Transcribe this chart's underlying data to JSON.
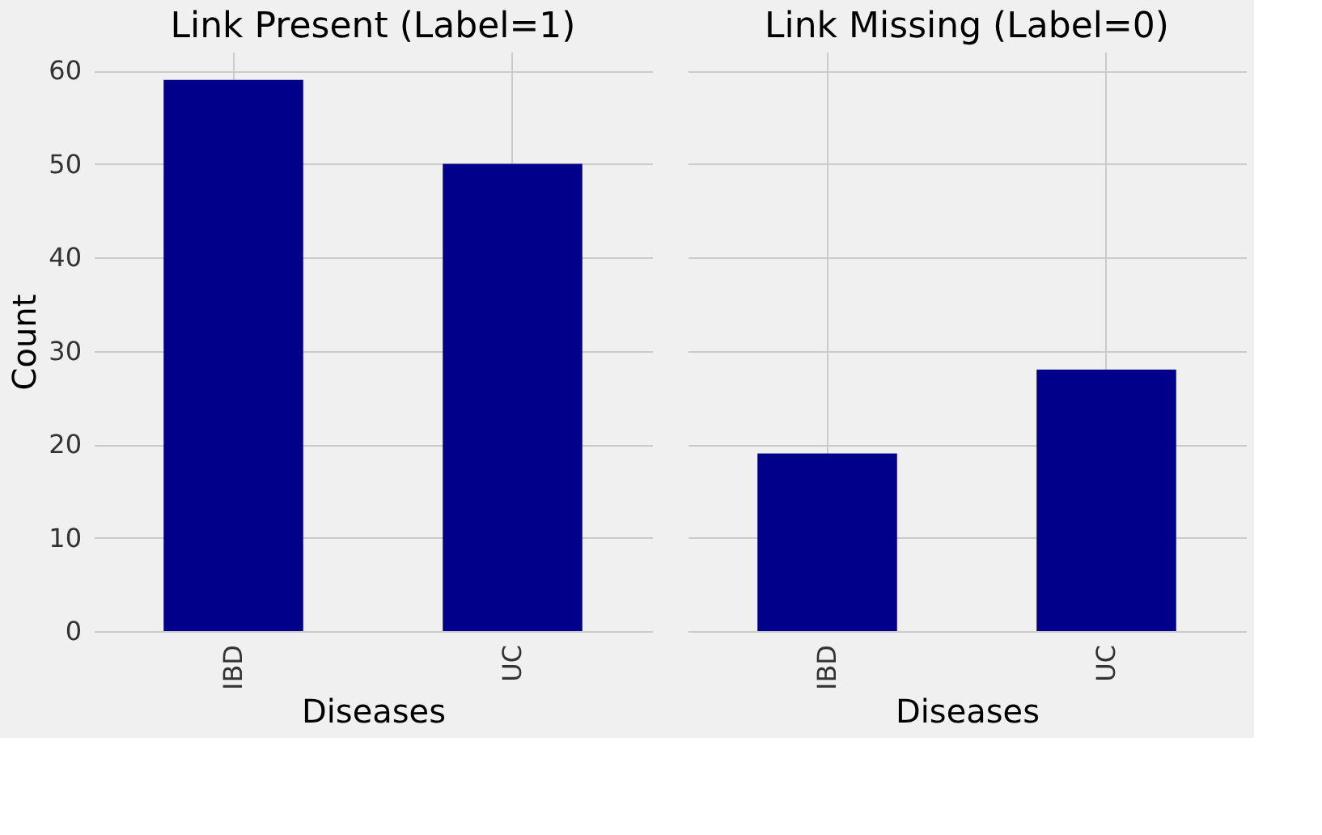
{
  "chart_data": [
    {
      "type": "bar",
      "title": "Link Present (Label=1)",
      "xlabel": "Diseases",
      "ylabel": "Count",
      "categories": [
        "IBD",
        "UC"
      ],
      "values": [
        59,
        50
      ],
      "color": "#00008b",
      "ylim": [
        0,
        62
      ],
      "yticks": [
        0,
        10,
        20,
        30,
        40,
        50,
        60
      ],
      "grid": true
    },
    {
      "type": "bar",
      "title": "Link Missing (Label=0)",
      "xlabel": "Diseases",
      "categories": [
        "IBD",
        "UC"
      ],
      "values": [
        19,
        28
      ],
      "color": "#00008b",
      "ylim": [
        0,
        62
      ],
      "yticks": [
        0,
        10,
        20,
        30,
        40,
        50,
        60
      ],
      "grid": true,
      "tick_labels": "x"
    }
  ]
}
